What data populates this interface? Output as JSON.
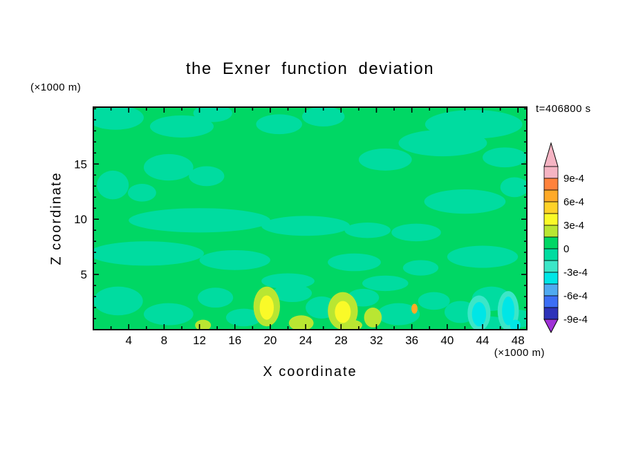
{
  "page": {
    "background": "#FFFFFF"
  },
  "chart_data": {
    "type": "filled-contour",
    "title": "the Exner function deviation",
    "time_label": "t=406800 s",
    "xlabel": "X coordinate",
    "ylabel": "Z coordinate",
    "x_unit": "(×1000 m)",
    "y_unit": "(×1000 m)",
    "x_range": [
      0,
      49
    ],
    "z_range": [
      0,
      20.15
    ],
    "x_major_ticks": [
      4,
      8,
      12,
      16,
      20,
      24,
      28,
      32,
      36,
      40,
      44,
      48
    ],
    "x_minor_step": 2,
    "y_major_ticks": [
      5,
      10,
      15
    ],
    "y_minor_step": 1,
    "contour_interval": 0.00015,
    "colorbar": {
      "labels": [
        "9e-4",
        "6e-4",
        "3e-4",
        "0",
        "-3e-4",
        "-6e-4",
        "-9e-4"
      ],
      "colors": [
        "#F5B4C3",
        "#FF823C",
        "#FFAA28",
        "#FFD228",
        "#FAFA28",
        "#B9E632",
        "#00D764",
        "#00DCA0",
        "#3CE6C8",
        "#00E6E6",
        "#50AAF0",
        "#3C6EF5",
        "#2D32B9"
      ],
      "tip_top": "#F5B4C3",
      "tip_bottom": "#A032D7"
    },
    "field": {
      "background_level": "0 to 1.5e-4",
      "palette": {
        "bg": "#00D764",
        "m1": "#00DCA0",
        "m2": "#3CE6C8",
        "m3": "#00E6E6",
        "p2": "#B9E632",
        "p3": "#FAFA28",
        "p5": "#FFAA28"
      },
      "patches": [
        {
          "x": 2.5,
          "z": 19.2,
          "rx": 3.2,
          "rz": 1.1,
          "c": "m1"
        },
        {
          "x": 10,
          "z": 18.4,
          "rx": 3.6,
          "rz": 1.0,
          "c": "m1"
        },
        {
          "x": 13.5,
          "z": 19.6,
          "rx": 2.2,
          "rz": 0.8,
          "c": "m1"
        },
        {
          "x": 21,
          "z": 18.6,
          "rx": 2.6,
          "rz": 0.9,
          "c": "m1"
        },
        {
          "x": 26,
          "z": 19.3,
          "rx": 2.4,
          "rz": 0.9,
          "c": "m1"
        },
        {
          "x": 43,
          "z": 18.6,
          "rx": 5.5,
          "rz": 1.3,
          "c": "m1"
        },
        {
          "x": 39.5,
          "z": 16.9,
          "rx": 5.0,
          "rz": 1.2,
          "c": "m1"
        },
        {
          "x": 46.5,
          "z": 15.6,
          "rx": 2.5,
          "rz": 0.9,
          "c": "m1"
        },
        {
          "x": 33,
          "z": 15.4,
          "rx": 3.0,
          "rz": 1.0,
          "c": "m1"
        },
        {
          "x": 8.5,
          "z": 14.7,
          "rx": 2.8,
          "rz": 1.2,
          "c": "m1"
        },
        {
          "x": 12.8,
          "z": 13.9,
          "rx": 2.0,
          "rz": 0.9,
          "c": "m1"
        },
        {
          "x": 2.2,
          "z": 13.1,
          "rx": 1.8,
          "rz": 1.3,
          "c": "m1"
        },
        {
          "x": 5.5,
          "z": 12.4,
          "rx": 1.6,
          "rz": 0.8,
          "c": "m1"
        },
        {
          "x": 42,
          "z": 11.6,
          "rx": 4.6,
          "rz": 1.1,
          "c": "m1"
        },
        {
          "x": 47.6,
          "z": 12.9,
          "rx": 1.6,
          "rz": 0.9,
          "c": "m1"
        },
        {
          "x": 12,
          "z": 9.9,
          "rx": 8.0,
          "rz": 1.1,
          "c": "m1"
        },
        {
          "x": 24,
          "z": 9.4,
          "rx": 5.0,
          "rz": 0.9,
          "c": "m1"
        },
        {
          "x": 31,
          "z": 9.0,
          "rx": 2.6,
          "rz": 0.7,
          "c": "m1"
        },
        {
          "x": 36.5,
          "z": 8.8,
          "rx": 2.8,
          "rz": 0.8,
          "c": "m1"
        },
        {
          "x": 6,
          "z": 6.9,
          "rx": 6.5,
          "rz": 1.1,
          "c": "m1"
        },
        {
          "x": 16,
          "z": 6.3,
          "rx": 4.0,
          "rz": 0.9,
          "c": "m1"
        },
        {
          "x": 29.5,
          "z": 6.1,
          "rx": 3.0,
          "rz": 0.8,
          "c": "m1"
        },
        {
          "x": 44,
          "z": 6.6,
          "rx": 4.0,
          "rz": 1.0,
          "c": "m1"
        },
        {
          "x": 37,
          "z": 5.6,
          "rx": 2.0,
          "rz": 0.7,
          "c": "m1"
        },
        {
          "x": 22,
          "z": 4.4,
          "rx": 3.0,
          "rz": 0.7,
          "c": "m1"
        },
        {
          "x": 33,
          "z": 4.2,
          "rx": 2.6,
          "rz": 0.7,
          "c": "m1"
        },
        {
          "x": 2.8,
          "z": 2.6,
          "rx": 2.8,
          "rz": 1.3,
          "c": "m1"
        },
        {
          "x": 8.5,
          "z": 1.4,
          "rx": 2.8,
          "rz": 1.0,
          "c": "m1"
        },
        {
          "x": 13.8,
          "z": 2.9,
          "rx": 2.0,
          "rz": 0.9,
          "c": "m1"
        },
        {
          "x": 17,
          "z": 1.1,
          "rx": 2.0,
          "rz": 0.8,
          "c": "m1"
        },
        {
          "x": 22.5,
          "z": 3.3,
          "rx": 2.2,
          "rz": 0.8,
          "c": "m1"
        },
        {
          "x": 25.8,
          "z": 2.0,
          "rx": 1.8,
          "rz": 1.0,
          "c": "m1"
        },
        {
          "x": 30.5,
          "z": 2.9,
          "rx": 1.8,
          "rz": 0.8,
          "c": "m1"
        },
        {
          "x": 34.5,
          "z": 1.4,
          "rx": 2.4,
          "rz": 1.0,
          "c": "m1"
        },
        {
          "x": 38.5,
          "z": 2.6,
          "rx": 1.8,
          "rz": 0.8,
          "c": "m1"
        },
        {
          "x": 41.5,
          "z": 1.6,
          "rx": 1.8,
          "rz": 1.0,
          "c": "m1"
        },
        {
          "x": 45,
          "z": 2.8,
          "rx": 2.2,
          "rz": 1.1,
          "c": "m1"
        },
        {
          "x": 48.2,
          "z": 1.0,
          "rx": 1.4,
          "rz": 0.8,
          "c": "m1"
        },
        {
          "x": 44.8,
          "z": 0.6,
          "rx": 2.0,
          "rz": 0.6,
          "c": "m1"
        },
        {
          "x": 43.6,
          "z": 1.5,
          "rx": 1.3,
          "rz": 1.6,
          "c": "m2"
        },
        {
          "x": 46.9,
          "z": 1.7,
          "rx": 1.2,
          "rz": 1.8,
          "c": "m2"
        },
        {
          "x": 43.6,
          "z": 1.4,
          "rx": 0.8,
          "rz": 1.1,
          "c": "m3"
        },
        {
          "x": 46.9,
          "z": 1.7,
          "rx": 0.7,
          "rz": 1.3,
          "c": "m3"
        },
        {
          "x": 47.7,
          "z": 0.4,
          "rx": 0.6,
          "rz": 0.5,
          "c": "m3"
        },
        {
          "x": 19.6,
          "z": 2.1,
          "rx": 1.5,
          "rz": 1.8,
          "c": "p2"
        },
        {
          "x": 28.2,
          "z": 1.7,
          "rx": 1.7,
          "rz": 1.7,
          "c": "p2"
        },
        {
          "x": 23.5,
          "z": 0.6,
          "rx": 1.4,
          "rz": 0.7,
          "c": "p2"
        },
        {
          "x": 31.6,
          "z": 1.1,
          "rx": 1.0,
          "rz": 0.9,
          "c": "p2"
        },
        {
          "x": 29.2,
          "z": 0.4,
          "rx": 1.2,
          "rz": 0.5,
          "c": "p2"
        },
        {
          "x": 12.4,
          "z": 0.4,
          "rx": 0.9,
          "rz": 0.5,
          "c": "p2"
        },
        {
          "x": 19.6,
          "z": 2.0,
          "rx": 0.8,
          "rz": 1.1,
          "c": "p3"
        },
        {
          "x": 28.2,
          "z": 1.6,
          "rx": 0.9,
          "rz": 1.0,
          "c": "p3"
        },
        {
          "x": 36.3,
          "z": 1.9,
          "rx": 0.35,
          "rz": 0.45,
          "c": "p5"
        }
      ]
    }
  }
}
